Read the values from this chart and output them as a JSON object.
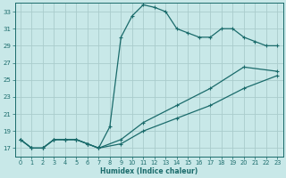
{
  "xlabel": "Humidex (Indice chaleur)",
  "bg_color": "#c8e8e8",
  "grid_color": "#aacccc",
  "line_color": "#1a6b6b",
  "xlim": [
    -0.5,
    23.5
  ],
  "ylim": [
    16,
    34
  ],
  "xticks": [
    0,
    1,
    2,
    3,
    4,
    5,
    6,
    7,
    8,
    9,
    10,
    11,
    12,
    13,
    14,
    15,
    16,
    17,
    18,
    19,
    20,
    21,
    22,
    23
  ],
  "yticks": [
    17,
    19,
    21,
    23,
    25,
    27,
    29,
    31,
    33
  ],
  "line1_x": [
    0,
    1,
    2,
    3,
    4,
    5,
    6,
    7,
    8,
    9,
    10,
    11,
    12,
    13,
    14,
    15,
    16,
    17,
    18,
    19,
    20,
    21,
    22,
    23
  ],
  "line1_y": [
    18,
    17,
    17,
    18,
    18,
    18,
    17.5,
    17,
    19.5,
    30,
    32.5,
    33.8,
    33.5,
    33,
    31,
    30.5,
    30,
    30,
    31,
    31,
    30,
    29.5,
    29,
    29
  ],
  "line2_x": [
    0,
    1,
    2,
    3,
    4,
    5,
    6,
    7,
    9,
    11,
    14,
    17,
    20,
    23
  ],
  "line2_y": [
    18,
    17,
    17,
    18,
    18,
    18,
    17.5,
    17,
    18,
    20,
    22,
    24,
    26.5,
    26
  ],
  "line3_x": [
    0,
    1,
    2,
    3,
    4,
    5,
    6,
    7,
    9,
    11,
    14,
    17,
    20,
    23
  ],
  "line3_y": [
    18,
    17,
    17,
    18,
    18,
    18,
    17.5,
    17,
    17.5,
    19,
    20.5,
    22,
    24,
    25.5
  ]
}
